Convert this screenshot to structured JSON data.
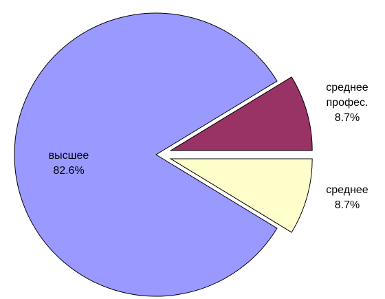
{
  "chart_data": {
    "type": "pie",
    "categories": [
      "высшее",
      "среднее профес.",
      "среднее"
    ],
    "values": [
      82.6,
      8.7,
      8.7
    ],
    "value_labels": [
      "82.6%",
      "8.7%",
      "8.7%"
    ],
    "colors": [
      "#9999ff",
      "#993366",
      "#ffffcc"
    ]
  }
}
